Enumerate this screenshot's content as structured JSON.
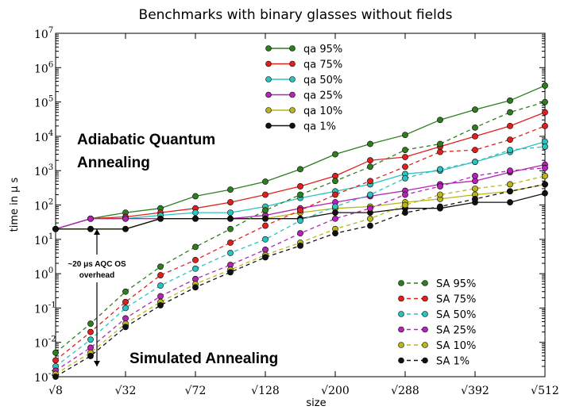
{
  "chart_data": {
    "type": "line",
    "title": "Benchmarks with binary glasses without fields",
    "xlabel": "size",
    "ylabel": "time in μ s",
    "y_scale": "log",
    "ylim": [
      0.001,
      10000000
    ],
    "y_tick_labels": [
      "10",
      "10",
      "10",
      "10",
      "10",
      "10",
      "10",
      "10",
      "10",
      "10",
      "10"
    ],
    "y_tick_exponents": [
      "-3",
      "-2",
      "-1",
      "0",
      "1",
      "2",
      "3",
      "4",
      "5",
      "6",
      "7"
    ],
    "x_tick_labels": [
      "√8",
      "√32",
      "√72",
      "√128",
      "√200",
      "√288",
      "√392",
      "√512"
    ],
    "x": [
      8,
      18,
      32,
      50,
      72,
      98,
      128,
      162,
      200,
      242,
      288,
      338,
      392,
      450,
      512
    ],
    "colors": {
      "95": "#2e7d1f",
      "75": "#e0201c",
      "50": "#2bc3c0",
      "25": "#b423b6",
      "10": "#b8b61a",
      "1": "#111111"
    },
    "series": [
      {
        "name": "qa 95%",
        "key": "95",
        "style": "solid",
        "values": [
          20,
          40,
          60,
          80,
          180,
          280,
          480,
          1100,
          3000,
          6000,
          11000,
          30000,
          60000,
          110000,
          300000
        ]
      },
      {
        "name": "qa 75%",
        "key": "75",
        "style": "solid",
        "values": [
          20,
          40,
          45,
          60,
          80,
          120,
          200,
          350,
          700,
          2000,
          2500,
          5000,
          10000,
          20000,
          50000
        ]
      },
      {
        "name": "qa 50%",
        "key": "50",
        "style": "solid",
        "values": [
          20,
          40,
          40,
          50,
          60,
          60,
          90,
          160,
          250,
          400,
          800,
          1000,
          1800,
          3500,
          7000
        ]
      },
      {
        "name": "qa 25%",
        "key": "25",
        "style": "solid",
        "values": [
          20,
          40,
          40,
          40,
          40,
          40,
          50,
          80,
          120,
          180,
          260,
          400,
          500,
          900,
          1500
        ]
      },
      {
        "name": "qa 10%",
        "key": "10",
        "style": "solid",
        "values": [
          20,
          20,
          20,
          40,
          40,
          40,
          40,
          60,
          80,
          90,
          120,
          150,
          200,
          250,
          400
        ]
      },
      {
        "name": "qa 1%",
        "key": "1",
        "style": "solid",
        "values": [
          20,
          20,
          20,
          40,
          40,
          40,
          40,
          40,
          60,
          60,
          80,
          80,
          120,
          120,
          220
        ]
      },
      {
        "name": "SA 95%",
        "key": "95",
        "style": "dashed",
        "values": [
          0.005,
          0.035,
          0.3,
          1.6,
          6,
          20,
          70,
          200,
          500,
          1300,
          4000,
          6000,
          18000,
          50000,
          100000
        ]
      },
      {
        "name": "SA 75%",
        "key": "75",
        "style": "dashed",
        "values": [
          0.003,
          0.02,
          0.15,
          0.9,
          2.5,
          8,
          25,
          70,
          200,
          500,
          1300,
          3500,
          4000,
          8000,
          20000
        ]
      },
      {
        "name": "SA 50%",
        "key": "50",
        "style": "dashed",
        "values": [
          0.002,
          0.012,
          0.1,
          0.45,
          1.4,
          4,
          10,
          35,
          90,
          200,
          600,
          1100,
          1800,
          4000,
          5000
        ]
      },
      {
        "name": "SA 25%",
        "key": "25",
        "style": "dashed",
        "values": [
          0.0015,
          0.007,
          0.05,
          0.22,
          0.7,
          1.8,
          5,
          15,
          40,
          80,
          200,
          350,
          700,
          1000,
          1200
        ]
      },
      {
        "name": "SA 10%",
        "key": "10",
        "style": "dashed",
        "values": [
          0.0012,
          0.005,
          0.035,
          0.15,
          0.5,
          1.3,
          3.5,
          8,
          20,
          40,
          100,
          200,
          300,
          400,
          700
        ]
      },
      {
        "name": "SA 1%",
        "key": "1",
        "style": "dashed",
        "values": [
          0.001,
          0.004,
          0.028,
          0.12,
          0.4,
          1.1,
          3,
          6.5,
          15,
          25,
          60,
          90,
          150,
          250,
          400
        ]
      }
    ],
    "legend_placement": [
      "top-center",
      "bottom-right"
    ],
    "annotations": {
      "aqa_line1": "Adiabatic Quantum",
      "aqa_line2": "Annealing",
      "sa": "Simulated Annealing",
      "overhead_line1": "~20 μs AQC OS",
      "overhead_line2": "overhead"
    }
  }
}
